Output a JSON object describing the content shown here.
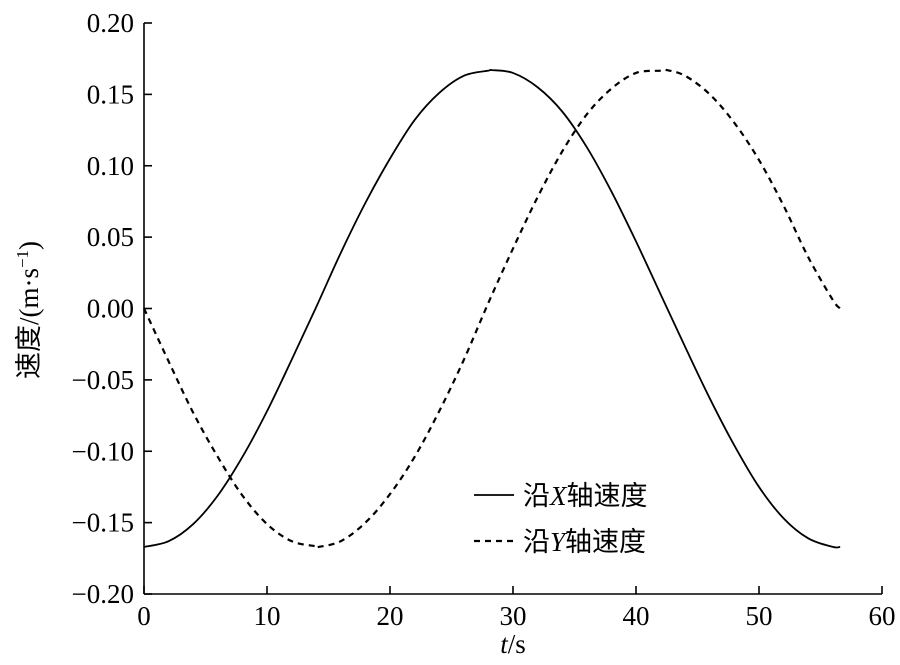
{
  "chart_data": {
    "type": "line",
    "xlabel": {
      "italic": "t",
      "rest": "/s"
    },
    "ylabel": {
      "main": "速度/(m·s",
      "sup": "−1",
      "close": ")"
    },
    "xlim": [
      0,
      60
    ],
    "ylim": [
      -0.2,
      0.2
    ],
    "x_ticks": [
      "0",
      "10",
      "20",
      "30",
      "40",
      "50",
      "60"
    ],
    "y_ticks": [
      "0.20",
      "0.15",
      "0.10",
      "0.05",
      "0.00",
      "−0.05",
      "−0.10",
      "−0.15",
      "−0.20"
    ],
    "grid": false,
    "legend_position": "lower-right",
    "series": [
      {
        "name": "沿X轴速度",
        "name_parts": {
          "pre": "沿",
          "var": "X",
          "post": "轴速度"
        },
        "style": "solid",
        "x": [
          0,
          2,
          4,
          6,
          8,
          10,
          12,
          14,
          16,
          18,
          20,
          22,
          24,
          26,
          28,
          28.3,
          30,
          32,
          34,
          36,
          38,
          40,
          42,
          44,
          46,
          48,
          50,
          52,
          54,
          56,
          56.6
        ],
        "y": [
          -0.167,
          -0.163,
          -0.151,
          -0.131,
          -0.104,
          -0.072,
          -0.036,
          0.001,
          0.039,
          0.074,
          0.105,
          0.132,
          0.151,
          0.163,
          0.1666,
          0.167,
          0.165,
          0.155,
          0.138,
          0.113,
          0.082,
          0.047,
          0.01,
          -0.027,
          -0.063,
          -0.096,
          -0.125,
          -0.147,
          -0.161,
          -0.167,
          -0.167
        ]
      },
      {
        "name": "沿Y轴速度",
        "name_parts": {
          "pre": "沿",
          "var": "Y",
          "post": "轴速度"
        },
        "style": "dashed",
        "x": [
          0,
          2,
          4,
          6,
          8,
          10,
          12,
          14,
          14.2,
          16,
          18,
          20,
          22,
          24,
          26,
          28,
          30,
          32,
          34,
          36,
          38,
          40,
          42,
          42.5,
          44,
          46,
          48,
          50,
          52,
          54,
          56,
          56.6
        ],
        "y": [
          0,
          -0.037,
          -0.073,
          -0.104,
          -0.131,
          -0.151,
          -0.163,
          -0.1666,
          -0.167,
          -0.163,
          -0.15,
          -0.13,
          -0.104,
          -0.072,
          -0.036,
          0.004,
          0.042,
          0.078,
          0.11,
          0.136,
          0.154,
          0.165,
          0.1666,
          0.167,
          0.163,
          0.15,
          0.13,
          0.104,
          0.072,
          0.036,
          0.006,
          0.0
        ]
      }
    ]
  }
}
